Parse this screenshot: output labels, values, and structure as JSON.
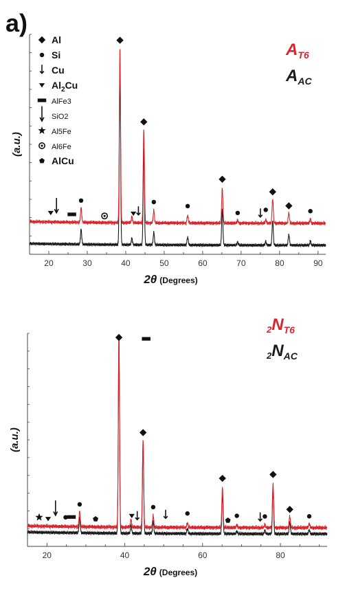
{
  "figure_label": "a)",
  "colors": {
    "treated": "#d9262c",
    "as_cast": "#1a1a1a",
    "axis": "#444444",
    "text": "#111111"
  },
  "chart_data": [
    {
      "type": "line",
      "panel": "top",
      "ylabel": "(a.u.)",
      "xlabel_main": "2θ",
      "xlabel_unit": "(Degrees)",
      "xlim": [
        15,
        92
      ],
      "xticks": [
        20,
        30,
        40,
        50,
        60,
        70,
        80,
        90
      ],
      "sample_labels": [
        {
          "main": "A",
          "sub": "T6",
          "color": "#d9262c"
        },
        {
          "main": "A",
          "sub": "AC",
          "color": "#1a1a1a"
        }
      ],
      "legend": [
        {
          "symbol": "diamond",
          "label": "Al"
        },
        {
          "symbol": "circle",
          "label": "Si"
        },
        {
          "symbol": "short-arrow",
          "label": "Cu"
        },
        {
          "symbol": "triangle-down",
          "label": "Al",
          "sub": "2",
          "tail": "Cu"
        },
        {
          "symbol": "rect",
          "label": "AlFe3"
        },
        {
          "symbol": "long-arrow",
          "label": "SiO2"
        },
        {
          "symbol": "star",
          "label": "Al5Fe"
        },
        {
          "symbol": "ring",
          "label": "Al6Fe"
        },
        {
          "symbol": "pentagon",
          "label": "AlCu"
        }
      ],
      "peaks": [
        {
          "x": 28.4,
          "h": 0.42
        },
        {
          "x": 38.5,
          "h": 5.0
        },
        {
          "x": 41.6,
          "h": 0.18
        },
        {
          "x": 44.7,
          "h": 2.7
        },
        {
          "x": 47.3,
          "h": 0.35
        },
        {
          "x": 56.1,
          "h": 0.22
        },
        {
          "x": 65.1,
          "h": 1.0
        },
        {
          "x": 69.1,
          "h": 0.08
        },
        {
          "x": 76.4,
          "h": 0.1
        },
        {
          "x": 78.2,
          "h": 0.7
        },
        {
          "x": 82.4,
          "h": 0.3
        },
        {
          "x": 88.0,
          "h": 0.12
        }
      ],
      "markers": [
        {
          "symbol": "triangle-down",
          "x": 20.5
        },
        {
          "symbol": "long-arrow",
          "x": 22.0
        },
        {
          "symbol": "rect",
          "x": 26.0
        },
        {
          "symbol": "circle",
          "x": 28.4
        },
        {
          "symbol": "ring",
          "x": 34.5
        },
        {
          "symbol": "diamond",
          "x": 38.5
        },
        {
          "symbol": "triangle-down",
          "x": 42.0
        },
        {
          "symbol": "short-arrow",
          "x": 43.3
        },
        {
          "symbol": "diamond",
          "x": 44.7
        },
        {
          "symbol": "circle",
          "x": 47.3
        },
        {
          "symbol": "circle",
          "x": 56.1
        },
        {
          "symbol": "diamond",
          "x": 65.1
        },
        {
          "symbol": "circle",
          "x": 69.1
        },
        {
          "symbol": "short-arrow",
          "x": 75.0
        },
        {
          "symbol": "circle",
          "x": 76.4
        },
        {
          "symbol": "diamond",
          "x": 78.2
        },
        {
          "symbol": "diamond",
          "x": 82.4
        },
        {
          "symbol": "circle",
          "x": 88.0
        }
      ]
    },
    {
      "type": "line",
      "panel": "bottom",
      "ylabel": "(a.u.)",
      "xlabel_main": "2θ",
      "xlabel_unit": "(Degrees)",
      "xlim": [
        15,
        92
      ],
      "xticks": [
        20,
        40,
        60,
        80
      ],
      "sample_labels": [
        {
          "pre": "2",
          "main": "N",
          "sub": "T6",
          "color": "#d9262c"
        },
        {
          "pre": "2",
          "main": "N",
          "sub": "AC",
          "color": "#1a1a1a"
        }
      ],
      "peaks": [
        {
          "x": 28.4,
          "h": 0.4
        },
        {
          "x": 38.5,
          "h": 5.0
        },
        {
          "x": 41.6,
          "h": 0.2
        },
        {
          "x": 44.7,
          "h": 2.3
        },
        {
          "x": 47.3,
          "h": 0.3
        },
        {
          "x": 56.1,
          "h": 0.12
        },
        {
          "x": 65.1,
          "h": 1.05
        },
        {
          "x": 68.8,
          "h": 0.06
        },
        {
          "x": 76.0,
          "h": 0.08
        },
        {
          "x": 78.1,
          "h": 1.15
        },
        {
          "x": 82.4,
          "h": 0.3
        },
        {
          "x": 87.4,
          "h": 0.1
        }
      ],
      "markers": [
        {
          "symbol": "star",
          "x": 18.0
        },
        {
          "symbol": "triangle-down",
          "x": 20.3
        },
        {
          "symbol": "long-arrow",
          "x": 22.2
        },
        {
          "symbol": "circle",
          "x": 24.8
        },
        {
          "symbol": "rect",
          "x": 26.3
        },
        {
          "symbol": "circle",
          "x": 28.4
        },
        {
          "symbol": "pentagon",
          "x": 32.5
        },
        {
          "symbol": "diamond",
          "x": 38.5
        },
        {
          "symbol": "rect",
          "x": 45.5
        },
        {
          "symbol": "triangle-down",
          "x": 41.8
        },
        {
          "symbol": "short-arrow",
          "x": 43.2
        },
        {
          "symbol": "diamond",
          "x": 44.7
        },
        {
          "symbol": "circle",
          "x": 47.3
        },
        {
          "symbol": "short-arrow",
          "x": 50.5
        },
        {
          "symbol": "circle",
          "x": 56.1
        },
        {
          "symbol": "diamond",
          "x": 65.1
        },
        {
          "symbol": "pentagon",
          "x": 66.5
        },
        {
          "symbol": "circle",
          "x": 68.8
        },
        {
          "symbol": "short-arrow",
          "x": 74.8
        },
        {
          "symbol": "circle",
          "x": 76.0
        },
        {
          "symbol": "diamond",
          "x": 78.1
        },
        {
          "symbol": "diamond",
          "x": 82.4
        },
        {
          "symbol": "circle",
          "x": 87.4
        }
      ]
    }
  ]
}
